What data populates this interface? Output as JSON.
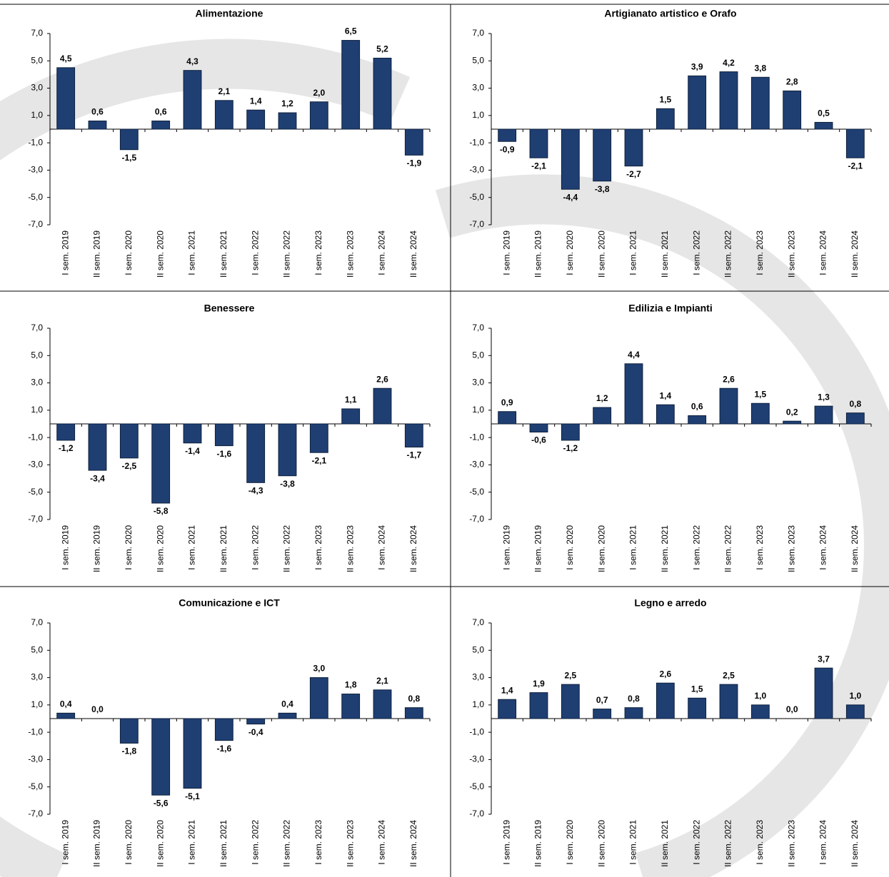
{
  "chart_data": [
    {
      "type": "bar",
      "title": "Alimentazione",
      "color": "#1f3f73",
      "categories": [
        "I sem. 2019",
        "II sem. 2019",
        "I sem. 2020",
        "II sem. 2020",
        "I sem. 2021",
        "II sem. 2021",
        "I sem. 2022",
        "II sem. 2022",
        "I sem. 2023",
        "II sem. 2023",
        "I sem. 2024",
        "II sem. 2024"
      ],
      "values": [
        4.5,
        0.6,
        -1.5,
        0.6,
        4.3,
        2.1,
        1.4,
        1.2,
        2.0,
        6.5,
        5.2,
        -1.9
      ],
      "value_labels": [
        "4,5",
        "0,6",
        "-1,5",
        "0,6",
        "4,3",
        "2,1",
        "1,4",
        "1,2",
        "2,0",
        "6,5",
        "5,2",
        "-1,9"
      ],
      "ylim": [
        -7,
        7
      ],
      "yticks": [
        {
          "value": 7,
          "label": "7,0"
        },
        {
          "value": 5,
          "label": "5,0"
        },
        {
          "value": 3,
          "label": "3,0"
        },
        {
          "value": 1,
          "label": "1,0"
        },
        {
          "value": -1,
          "label": "-1,0"
        },
        {
          "value": -3,
          "label": "-3,0"
        },
        {
          "value": -5,
          "label": "-5,0"
        },
        {
          "value": -7,
          "label": "-7,0"
        }
      ]
    },
    {
      "type": "bar",
      "title": "Artigianato artistico e Orafo",
      "color": "#1f3f73",
      "categories": [
        "I sem. 2019",
        "II sem. 2019",
        "I sem. 2020",
        "II sem. 2020",
        "I sem. 2021",
        "II sem. 2021",
        "I sem. 2022",
        "II sem. 2022",
        "I sem. 2023",
        "II sem. 2023",
        "I sem. 2024",
        "II sem. 2024"
      ],
      "values": [
        -0.9,
        -2.1,
        -4.4,
        -3.8,
        -2.7,
        1.5,
        3.9,
        4.2,
        3.8,
        2.8,
        0.5,
        -2.1
      ],
      "value_labels": [
        "-0,9",
        "-2,1",
        "-4,4",
        "-3,8",
        "-2,7",
        "1,5",
        "3,9",
        "4,2",
        "3,8",
        "2,8",
        "0,5",
        "-2,1"
      ],
      "ylim": [
        -7,
        7
      ],
      "yticks": [
        {
          "value": 7,
          "label": "7,0"
        },
        {
          "value": 5,
          "label": "5,0"
        },
        {
          "value": 3,
          "label": "3,0"
        },
        {
          "value": 1,
          "label": "1,0"
        },
        {
          "value": -1,
          "label": "-1,0"
        },
        {
          "value": -3,
          "label": "-3,0"
        },
        {
          "value": -5,
          "label": "-5,0"
        },
        {
          "value": -7,
          "label": "-7,0"
        }
      ]
    },
    {
      "type": "bar",
      "title": "Benessere",
      "color": "#1f3f73",
      "categories": [
        "I sem. 2019",
        "II sem. 2019",
        "I sem. 2020",
        "II sem. 2020",
        "I sem. 2021",
        "II sem. 2021",
        "I sem. 2022",
        "II sem. 2022",
        "I sem. 2023",
        "II sem. 2023",
        "I sem. 2024",
        "II sem. 2024"
      ],
      "values": [
        -1.2,
        -3.4,
        -2.5,
        -5.8,
        -1.4,
        -1.6,
        -4.3,
        -3.8,
        -2.1,
        1.1,
        2.6,
        -1.7
      ],
      "value_labels": [
        "-1,2",
        "-3,4",
        "-2,5",
        "-5,8",
        "-1,4",
        "-1,6",
        "-4,3",
        "-3,8",
        "-2,1",
        "1,1",
        "2,6",
        "-1,7"
      ],
      "ylim": [
        -7,
        7
      ],
      "yticks": [
        {
          "value": 7,
          "label": "7,0"
        },
        {
          "value": 5,
          "label": "5,0"
        },
        {
          "value": 3,
          "label": "3,0"
        },
        {
          "value": 1,
          "label": "1,0"
        },
        {
          "value": -1,
          "label": "-1,0"
        },
        {
          "value": -3,
          "label": "-3,0"
        },
        {
          "value": -5,
          "label": "-5,0"
        },
        {
          "value": -7,
          "label": "-7,0"
        }
      ]
    },
    {
      "type": "bar",
      "title": "Edilizia e Impianti",
      "color": "#1f3f73",
      "categories": [
        "I sem. 2019",
        "II sem. 2019",
        "I sem. 2020",
        "II sem. 2020",
        "I sem. 2021",
        "II sem. 2021",
        "I sem. 2022",
        "II sem. 2022",
        "I sem. 2023",
        "II sem. 2023",
        "I sem. 2024",
        "II sem. 2024"
      ],
      "values": [
        0.9,
        -0.6,
        -1.2,
        1.2,
        4.4,
        1.4,
        0.6,
        2.6,
        1.5,
        0.2,
        1.3,
        0.8
      ],
      "value_labels": [
        "0,9",
        "-0,6",
        "-1,2",
        "1,2",
        "4,4",
        "1,4",
        "0,6",
        "2,6",
        "1,5",
        "0,2",
        "1,3",
        "0,8"
      ],
      "ylim": [
        -7,
        7
      ],
      "yticks": [
        {
          "value": 7,
          "label": "7,0"
        },
        {
          "value": 5,
          "label": "5,0"
        },
        {
          "value": 3,
          "label": "3,0"
        },
        {
          "value": 1,
          "label": "1,0"
        },
        {
          "value": -1,
          "label": "-1,0"
        },
        {
          "value": -3,
          "label": "-3,0"
        },
        {
          "value": -5,
          "label": "-5,0"
        },
        {
          "value": -7,
          "label": "-7,0"
        }
      ]
    },
    {
      "type": "bar",
      "title": "Comunicazione e ICT",
      "color": "#1f3f73",
      "categories": [
        "I sem. 2019",
        "II sem. 2019",
        "I sem. 2020",
        "II sem. 2020",
        "I sem. 2021",
        "II sem. 2021",
        "I sem. 2022",
        "II sem. 2022",
        "I sem. 2023",
        "II sem. 2023",
        "I sem. 2024",
        "II sem. 2024"
      ],
      "values": [
        0.4,
        0.0,
        -1.8,
        -5.6,
        -5.1,
        -1.6,
        -0.4,
        0.4,
        3.0,
        1.8,
        2.1,
        0.8
      ],
      "value_labels": [
        "0,4",
        "0,0",
        "-1,8",
        "-5,6",
        "-5,1",
        "-1,6",
        "-0,4",
        "0,4",
        "3,0",
        "1,8",
        "2,1",
        "0,8"
      ],
      "ylim": [
        -7,
        7
      ],
      "yticks": [
        {
          "value": 7,
          "label": "7,0"
        },
        {
          "value": 5,
          "label": "5,0"
        },
        {
          "value": 3,
          "label": "3,0"
        },
        {
          "value": 1,
          "label": "1,0"
        },
        {
          "value": -1,
          "label": "-1,0"
        },
        {
          "value": -3,
          "label": "-3,0"
        },
        {
          "value": -5,
          "label": "-5,0"
        },
        {
          "value": -7,
          "label": "-7,0"
        }
      ]
    },
    {
      "type": "bar",
      "title": "Legno e arredo",
      "color": "#1f3f73",
      "categories": [
        "I sem. 2019",
        "II sem. 2019",
        "I sem. 2020",
        "II sem. 2020",
        "I sem. 2021",
        "II sem. 2021",
        "I sem. 2022",
        "II sem. 2022",
        "I sem. 2023",
        "II sem. 2023",
        "I sem. 2024",
        "II sem. 2024"
      ],
      "values": [
        1.4,
        1.9,
        2.5,
        0.7,
        0.8,
        2.6,
        1.5,
        2.5,
        1.0,
        0.0,
        3.7,
        1.0
      ],
      "value_labels": [
        "1,4",
        "1,9",
        "2,5",
        "0,7",
        "0,8",
        "2,6",
        "1,5",
        "2,5",
        "1,0",
        "0,0",
        "3,7",
        "1,0"
      ],
      "ylim": [
        -7,
        7
      ],
      "yticks": [
        {
          "value": 7,
          "label": "7,0"
        },
        {
          "value": 5,
          "label": "5,0"
        },
        {
          "value": 3,
          "label": "3,0"
        },
        {
          "value": 1,
          "label": "1,0"
        },
        {
          "value": -1,
          "label": "-1,0"
        },
        {
          "value": -3,
          "label": "-3,0"
        },
        {
          "value": -5,
          "label": "-5,0"
        },
        {
          "value": -7,
          "label": "-7,0"
        }
      ]
    }
  ]
}
